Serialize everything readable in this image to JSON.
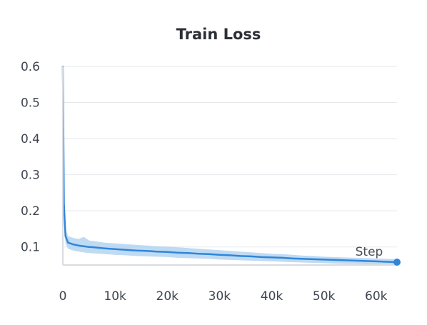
{
  "chart_data": {
    "type": "line",
    "title": "Train Loss",
    "xlabel": "",
    "ylabel": "",
    "x_axis_name": "Step",
    "xlim": [
      0,
      64000
    ],
    "ylim": [
      0.05,
      0.6
    ],
    "x_ticks": [
      0,
      10000,
      20000,
      30000,
      40000,
      50000,
      60000
    ],
    "x_tick_labels": [
      "0",
      "10k",
      "20k",
      "30k",
      "40k",
      "50k",
      "60k"
    ],
    "y_ticks": [
      0.1,
      0.2,
      0.3,
      0.4,
      0.5,
      0.6
    ],
    "y_tick_labels": [
      "0.1",
      "0.2",
      "0.3",
      "0.4",
      "0.5",
      "0.6"
    ],
    "grid": true,
    "legend": "none",
    "series": [
      {
        "color": "#2f86d8",
        "band_color": "#a9cdef",
        "x": [
          0,
          200,
          500,
          1000,
          2000,
          3000,
          4000,
          5000,
          6000,
          8000,
          10000,
          12000,
          14000,
          16000,
          18000,
          20000,
          22000,
          24000,
          26000,
          28000,
          30000,
          32000,
          34000,
          36000,
          38000,
          40000,
          42000,
          44000,
          46000,
          48000,
          50000,
          52000,
          54000,
          56000,
          58000,
          60000,
          62000,
          64000
        ],
        "values": [
          0.6,
          0.22,
          0.13,
          0.112,
          0.107,
          0.104,
          0.102,
          0.1,
          0.099,
          0.096,
          0.094,
          0.092,
          0.09,
          0.089,
          0.087,
          0.086,
          0.084,
          0.083,
          0.081,
          0.08,
          0.078,
          0.077,
          0.075,
          0.074,
          0.072,
          0.071,
          0.07,
          0.068,
          0.067,
          0.066,
          0.065,
          0.064,
          0.063,
          0.062,
          0.061,
          0.06,
          0.059,
          0.058
        ],
        "band_low": [
          0.5,
          0.18,
          0.11,
          0.095,
          0.09,
          0.087,
          0.085,
          0.083,
          0.082,
          0.08,
          0.078,
          0.077,
          0.075,
          0.074,
          0.073,
          0.072,
          0.07,
          0.069,
          0.068,
          0.067,
          0.065,
          0.064,
          0.063,
          0.062,
          0.061,
          0.06,
          0.059,
          0.058,
          0.057,
          0.056,
          0.055,
          0.054,
          0.053,
          0.053,
          0.052,
          0.052,
          0.051,
          0.051
        ],
        "band_high": [
          0.6,
          0.28,
          0.15,
          0.13,
          0.125,
          0.122,
          0.128,
          0.118,
          0.116,
          0.112,
          0.11,
          0.108,
          0.106,
          0.104,
          0.102,
          0.101,
          0.099,
          0.097,
          0.095,
          0.093,
          0.091,
          0.089,
          0.087,
          0.085,
          0.083,
          0.081,
          0.08,
          0.078,
          0.076,
          0.075,
          0.073,
          0.072,
          0.071,
          0.07,
          0.069,
          0.068,
          0.067,
          0.066
        ]
      }
    ]
  }
}
